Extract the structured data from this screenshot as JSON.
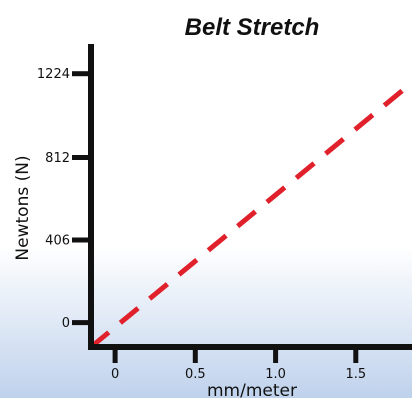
{
  "colors": {
    "background_top": "#ffffff",
    "background_bottom": "#bfd2ec",
    "axis": "#111111",
    "series": "#e0202b"
  },
  "chart_data": {
    "type": "line",
    "title": "Belt Stretch",
    "xlabel": "mm/meter",
    "ylabel": "Newtons (N)",
    "x_ticks": [
      {
        "value": 0,
        "label": "0"
      },
      {
        "value": 0.5,
        "label": "0.5"
      },
      {
        "value": 1.0,
        "label": "1.0"
      },
      {
        "value": 1.5,
        "label": "1.5"
      }
    ],
    "y_ticks": [
      {
        "value": 0,
        "label": "0"
      },
      {
        "value": 406,
        "label": "406"
      },
      {
        "value": 812,
        "label": "812"
      },
      {
        "value": 1224,
        "label": "1224"
      }
    ],
    "xlim": [
      -0.15,
      1.85
    ],
    "ylim": [
      -120,
      1370
    ],
    "grid": false,
    "series": [
      {
        "style": "dashed",
        "x": [
          -0.15,
          1.85
        ],
        "y": [
          -120,
          1180
        ]
      }
    ]
  }
}
